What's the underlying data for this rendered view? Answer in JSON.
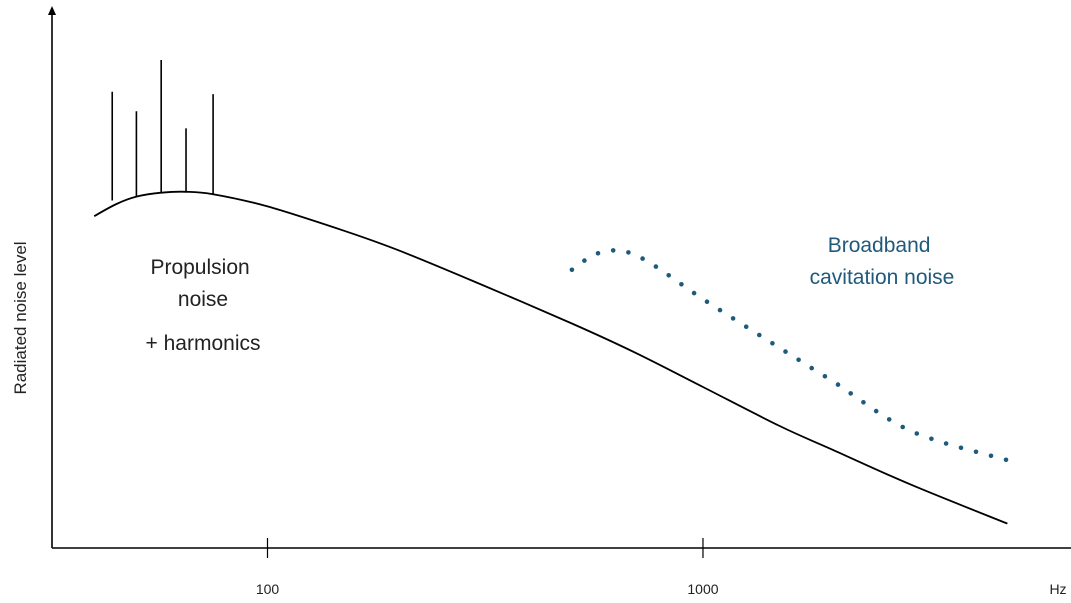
{
  "chart_data": {
    "type": "line",
    "title": "",
    "ylabel": "Radiated noise level",
    "xscale": "log",
    "xlim": [
      32,
      7000
    ],
    "ylim": [
      0,
      100
    ],
    "xticks": [
      {
        "value": 100,
        "label": "100"
      },
      {
        "value": 1000,
        "label": "1000"
      }
    ],
    "x_unit_label": "Hz",
    "grid": false,
    "legend": "none",
    "series": [
      {
        "style": "solid",
        "color": "#000000",
        "points": [
          [
            40,
            68
          ],
          [
            45,
            70.5
          ],
          [
            50,
            72
          ],
          [
            57,
            72.8
          ],
          [
            65,
            73
          ],
          [
            75,
            72.5
          ],
          [
            100,
            70
          ],
          [
            150,
            65
          ],
          [
            200,
            61
          ],
          [
            300,
            54.5
          ],
          [
            500,
            46
          ],
          [
            700,
            40
          ],
          [
            1000,
            33
          ],
          [
            1500,
            25
          ],
          [
            2000,
            20
          ],
          [
            3000,
            13
          ],
          [
            5000,
            5
          ]
        ]
      },
      {
        "style": "dotted",
        "color": "#1f5a7d",
        "points": [
          [
            500,
            57
          ],
          [
            560,
            60
          ],
          [
            630,
            61
          ],
          [
            700,
            60
          ],
          [
            800,
            57
          ],
          [
            1000,
            51
          ],
          [
            1500,
            41
          ],
          [
            2000,
            34
          ],
          [
            3000,
            24
          ],
          [
            5000,
            18
          ]
        ]
      }
    ],
    "harmonic_lines": [
      {
        "x": 44,
        "base": 71.2,
        "top": 93.5
      },
      {
        "x": 50,
        "base": 72.0,
        "top": 89.5
      },
      {
        "x": 57,
        "base": 72.8,
        "top": 100.0
      },
      {
        "x": 65,
        "base": 73.0,
        "top": 86.0
      },
      {
        "x": 75,
        "base": 72.5,
        "top": 93.0
      }
    ],
    "annotations": [
      {
        "id": "propulsion",
        "lines": [
          "Propulsion",
          "noise"
        ],
        "color": "#222222"
      },
      {
        "id": "harmonics",
        "lines": [
          "+ harmonics"
        ],
        "color": "#222222"
      },
      {
        "id": "cavitation",
        "lines": [
          "Broadband",
          "cavitation noise"
        ],
        "color": "#1f5a7d"
      }
    ]
  }
}
